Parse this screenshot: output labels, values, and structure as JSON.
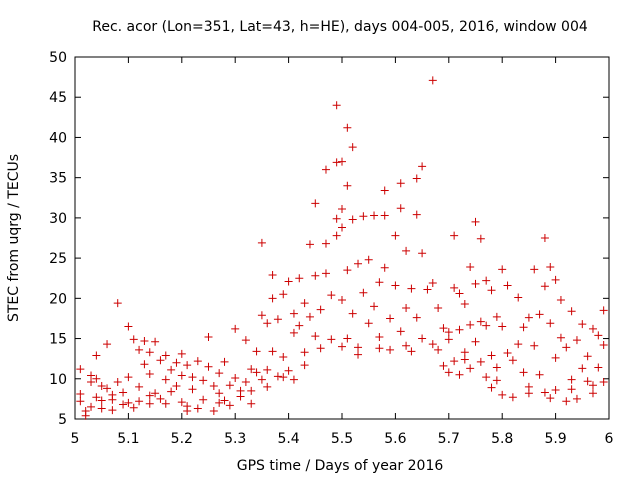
{
  "chart_data": {
    "type": "scatter",
    "title": "Rec. acor (Lon=351, Lat=43, h=HE), days 004-005, 2016, window 004",
    "xlabel": "GPS time / Days of year 2016",
    "ylabel": "STEC from uqrg / TECUs",
    "xlim": [
      5,
      6
    ],
    "ylim": [
      5,
      50
    ],
    "xticks": [
      "5",
      "5.1",
      "5.2",
      "5.3",
      "5.4",
      "5.5",
      "5.6",
      "5.7",
      "5.8",
      "5.9",
      "6"
    ],
    "yticks": [
      "5",
      "10",
      "15",
      "20",
      "25",
      "30",
      "35",
      "40",
      "45",
      "50"
    ],
    "grid": false,
    "marker": "plus",
    "color": "#cc0000",
    "points": [
      [
        5.01,
        11.2
      ],
      [
        5.01,
        8.1
      ],
      [
        5.01,
        7.2
      ],
      [
        5.02,
        6.0
      ],
      [
        5.02,
        5.4
      ],
      [
        5.03,
        10.4
      ],
      [
        5.03,
        9.6
      ],
      [
        5.03,
        6.5
      ],
      [
        5.04,
        12.9
      ],
      [
        5.04,
        10.0
      ],
      [
        5.04,
        7.7
      ],
      [
        5.05,
        9.1
      ],
      [
        5.05,
        6.3
      ],
      [
        5.06,
        14.3
      ],
      [
        5.06,
        8.8
      ],
      [
        5.07,
        7.4
      ],
      [
        5.07,
        6.1
      ],
      [
        5.08,
        19.4
      ],
      [
        5.08,
        9.6
      ],
      [
        5.09,
        8.3
      ],
      [
        5.09,
        6.8
      ],
      [
        5.1,
        16.5
      ],
      [
        5.1,
        10.2
      ],
      [
        5.1,
        7.0
      ],
      [
        5.11,
        14.9
      ],
      [
        5.11,
        6.4
      ],
      [
        5.12,
        13.6
      ],
      [
        5.12,
        9.0
      ],
      [
        5.12,
        7.2
      ],
      [
        5.13,
        14.7
      ],
      [
        5.13,
        11.8
      ],
      [
        5.14,
        13.3
      ],
      [
        5.14,
        10.6
      ],
      [
        5.14,
        6.9
      ],
      [
        5.15,
        14.6
      ],
      [
        5.15,
        8.2
      ],
      [
        5.16,
        12.3
      ],
      [
        5.16,
        7.5
      ],
      [
        5.17,
        12.9
      ],
      [
        5.17,
        9.9
      ],
      [
        5.18,
        11.1
      ],
      [
        5.18,
        8.4
      ],
      [
        5.19,
        12.0
      ],
      [
        5.19,
        9.1
      ],
      [
        5.2,
        13.1
      ],
      [
        5.2,
        10.4
      ],
      [
        5.2,
        7.1
      ],
      [
        5.21,
        11.7
      ],
      [
        5.21,
        6.6
      ],
      [
        5.22,
        10.2
      ],
      [
        5.22,
        8.7
      ],
      [
        5.23,
        12.2
      ],
      [
        5.23,
        6.3
      ],
      [
        5.24,
        9.8
      ],
      [
        5.24,
        7.4
      ],
      [
        5.25,
        11.5
      ],
      [
        5.25,
        15.2
      ],
      [
        5.26,
        9.1
      ],
      [
        5.26,
        6.0
      ],
      [
        5.27,
        10.7
      ],
      [
        5.27,
        8.2
      ],
      [
        5.28,
        7.3
      ],
      [
        5.28,
        12.1
      ],
      [
        5.29,
        9.2
      ],
      [
        5.29,
        6.7
      ],
      [
        5.3,
        16.2
      ],
      [
        5.3,
        10.1
      ],
      [
        5.31,
        8.5
      ],
      [
        5.31,
        7.8
      ],
      [
        5.32,
        14.8
      ],
      [
        5.32,
        9.6
      ],
      [
        5.33,
        11.2
      ],
      [
        5.33,
        6.9
      ],
      [
        5.34,
        10.8
      ],
      [
        5.34,
        13.4
      ],
      [
        5.35,
        26.9
      ],
      [
        5.35,
        17.9
      ],
      [
        5.35,
        9.9
      ],
      [
        5.36,
        16.9
      ],
      [
        5.36,
        11.1
      ],
      [
        5.37,
        22.9
      ],
      [
        5.37,
        20.0
      ],
      [
        5.37,
        13.4
      ],
      [
        5.38,
        10.3
      ],
      [
        5.38,
        17.4
      ],
      [
        5.39,
        20.5
      ],
      [
        5.39,
        12.7
      ],
      [
        5.4,
        22.1
      ],
      [
        5.4,
        11.0
      ],
      [
        5.41,
        18.1
      ],
      [
        5.41,
        15.7
      ],
      [
        5.41,
        9.9
      ],
      [
        5.42,
        22.5
      ],
      [
        5.42,
        16.6
      ],
      [
        5.43,
        13.3
      ],
      [
        5.43,
        19.4
      ],
      [
        5.44,
        26.7
      ],
      [
        5.44,
        17.7
      ],
      [
        5.45,
        31.8
      ],
      [
        5.45,
        22.8
      ],
      [
        5.45,
        15.3
      ],
      [
        5.46,
        18.6
      ],
      [
        5.46,
        13.8
      ],
      [
        5.47,
        36.0
      ],
      [
        5.47,
        26.8
      ],
      [
        5.47,
        23.1
      ],
      [
        5.48,
        20.4
      ],
      [
        5.48,
        14.9
      ],
      [
        5.49,
        44.0
      ],
      [
        5.49,
        36.9
      ],
      [
        5.49,
        29.9
      ],
      [
        5.49,
        27.8
      ],
      [
        5.5,
        37.0
      ],
      [
        5.5,
        31.1
      ],
      [
        5.5,
        28.8
      ],
      [
        5.5,
        19.8
      ],
      [
        5.51,
        41.2
      ],
      [
        5.51,
        34.0
      ],
      [
        5.51,
        23.5
      ],
      [
        5.51,
        15.0
      ],
      [
        5.52,
        38.8
      ],
      [
        5.52,
        29.8
      ],
      [
        5.52,
        18.1
      ],
      [
        5.53,
        24.3
      ],
      [
        5.53,
        13.9
      ],
      [
        5.54,
        30.2
      ],
      [
        5.54,
        20.7
      ],
      [
        5.55,
        24.8
      ],
      [
        5.55,
        16.9
      ],
      [
        5.56,
        30.3
      ],
      [
        5.56,
        19.0
      ],
      [
        5.57,
        22.0
      ],
      [
        5.57,
        15.2
      ],
      [
        5.58,
        30.3
      ],
      [
        5.58,
        33.4
      ],
      [
        5.58,
        23.8
      ],
      [
        5.59,
        17.5
      ],
      [
        5.59,
        13.6
      ],
      [
        5.6,
        27.8
      ],
      [
        5.6,
        21.6
      ],
      [
        5.61,
        34.3
      ],
      [
        5.61,
        31.2
      ],
      [
        5.61,
        15.9
      ],
      [
        5.62,
        25.9
      ],
      [
        5.62,
        18.8
      ],
      [
        5.62,
        14.1
      ],
      [
        5.63,
        21.2
      ],
      [
        5.63,
        13.4
      ],
      [
        5.64,
        30.4
      ],
      [
        5.64,
        34.9
      ],
      [
        5.64,
        17.6
      ],
      [
        5.65,
        36.4
      ],
      [
        5.65,
        25.6
      ],
      [
        5.65,
        15.0
      ],
      [
        5.66,
        21.1
      ],
      [
        5.67,
        47.1
      ],
      [
        5.67,
        21.9
      ],
      [
        5.67,
        14.3
      ],
      [
        5.68,
        18.8
      ],
      [
        5.68,
        13.6
      ],
      [
        5.69,
        16.3
      ],
      [
        5.69,
        11.6
      ],
      [
        5.7,
        14.9
      ],
      [
        5.7,
        10.8
      ],
      [
        5.71,
        27.8
      ],
      [
        5.71,
        21.3
      ],
      [
        5.71,
        12.2
      ],
      [
        5.72,
        20.6
      ],
      [
        5.72,
        16.1
      ],
      [
        5.72,
        10.5
      ],
      [
        5.73,
        19.3
      ],
      [
        5.73,
        13.3
      ],
      [
        5.74,
        23.9
      ],
      [
        5.74,
        16.7
      ],
      [
        5.74,
        11.3
      ],
      [
        5.75,
        29.5
      ],
      [
        5.75,
        21.8
      ],
      [
        5.75,
        14.6
      ],
      [
        5.76,
        27.4
      ],
      [
        5.76,
        17.1
      ],
      [
        5.76,
        12.1
      ],
      [
        5.77,
        22.2
      ],
      [
        5.77,
        16.6
      ],
      [
        5.77,
        10.2
      ],
      [
        5.78,
        21.0
      ],
      [
        5.78,
        12.9
      ],
      [
        5.78,
        8.9
      ],
      [
        5.79,
        17.7
      ],
      [
        5.79,
        11.4
      ],
      [
        5.8,
        23.6
      ],
      [
        5.8,
        16.5
      ],
      [
        5.8,
        8.0
      ],
      [
        5.81,
        21.6
      ],
      [
        5.81,
        13.2
      ],
      [
        5.82,
        12.3
      ],
      [
        5.82,
        7.7
      ],
      [
        5.83,
        20.1
      ],
      [
        5.83,
        14.3
      ],
      [
        5.84,
        16.4
      ],
      [
        5.84,
        10.8
      ],
      [
        5.85,
        17.6
      ],
      [
        5.85,
        8.2
      ],
      [
        5.86,
        23.6
      ],
      [
        5.86,
        14.1
      ],
      [
        5.87,
        18.0
      ],
      [
        5.87,
        10.5
      ],
      [
        5.88,
        27.5
      ],
      [
        5.88,
        21.5
      ],
      [
        5.88,
        8.3
      ],
      [
        5.89,
        23.9
      ],
      [
        5.89,
        16.9
      ],
      [
        5.89,
        7.6
      ],
      [
        5.9,
        22.3
      ],
      [
        5.9,
        12.6
      ],
      [
        5.9,
        8.6
      ],
      [
        5.91,
        19.8
      ],
      [
        5.91,
        15.1
      ],
      [
        5.92,
        13.9
      ],
      [
        5.92,
        7.2
      ],
      [
        5.93,
        18.4
      ],
      [
        5.93,
        9.9
      ],
      [
        5.94,
        14.8
      ],
      [
        5.94,
        7.5
      ],
      [
        5.95,
        11.3
      ],
      [
        5.95,
        16.8
      ],
      [
        5.96,
        12.8
      ],
      [
        5.96,
        9.7
      ],
      [
        5.97,
        16.2
      ],
      [
        5.97,
        8.2
      ],
      [
        5.98,
        15.4
      ],
      [
        5.98,
        11.4
      ],
      [
        5.99,
        18.5
      ],
      [
        5.99,
        14.2
      ],
      [
        5.99,
        9.6
      ],
      [
        5.5,
        14.0
      ],
      [
        5.53,
        13.0
      ],
      [
        5.57,
        13.8
      ],
      [
        5.43,
        11.7
      ],
      [
        5.39,
        10.2
      ],
      [
        5.36,
        9.0
      ],
      [
        5.33,
        8.5
      ],
      [
        5.27,
        7.0
      ],
      [
        5.21,
        6.0
      ],
      [
        5.17,
        6.9
      ],
      [
        5.14,
        7.9
      ],
      [
        5.07,
        8.0
      ],
      [
        5.05,
        7.3
      ],
      [
        5.7,
        15.8
      ],
      [
        5.73,
        12.4
      ],
      [
        5.79,
        9.8
      ],
      [
        5.85,
        9.0
      ],
      [
        5.93,
        8.7
      ],
      [
        5.97,
        9.2
      ]
    ]
  }
}
